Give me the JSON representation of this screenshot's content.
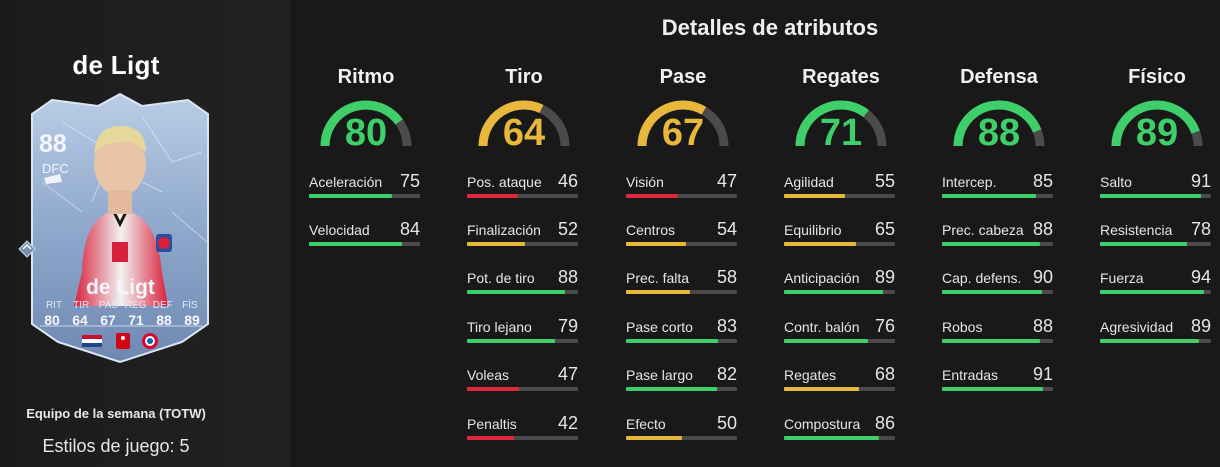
{
  "player": {
    "name": "de Ligt",
    "card_rating": "88",
    "card_position": "DFC",
    "card_name": "de Ligt",
    "card_stat_labels": [
      "RIT",
      "TIR",
      "PAS",
      "REG",
      "DEF",
      "FÍS"
    ],
    "card_stat_values": [
      "80",
      "64",
      "67",
      "71",
      "88",
      "89"
    ],
    "card_type": "Equipo de la semana (TOTW)",
    "playstyles": "Estilos de juego: 5"
  },
  "title": "Detalles de atributos",
  "colors": {
    "green": "#3ecf6a",
    "yellow": "#e8b83c",
    "red": "#e0283c",
    "track": "#4a4a4a",
    "gauge_track": "#4b4b4b"
  },
  "categories": [
    {
      "name": "Ritmo",
      "value": "80",
      "level": "green",
      "attrs": [
        {
          "label": "Aceleración",
          "value": "75"
        },
        {
          "label": "Velocidad",
          "value": "84"
        }
      ]
    },
    {
      "name": "Tiro",
      "value": "64",
      "level": "yellow",
      "attrs": [
        {
          "label": "Pos. ataque",
          "value": "46"
        },
        {
          "label": "Finalización",
          "value": "52"
        },
        {
          "label": "Pot. de tiro",
          "value": "88"
        },
        {
          "label": "Tiro lejano",
          "value": "79"
        },
        {
          "label": "Voleas",
          "value": "47"
        },
        {
          "label": "Penaltis",
          "value": "42"
        }
      ]
    },
    {
      "name": "Pase",
      "value": "67",
      "level": "yellow",
      "attrs": [
        {
          "label": "Visión",
          "value": "47"
        },
        {
          "label": "Centros",
          "value": "54"
        },
        {
          "label": "Prec. falta",
          "value": "58"
        },
        {
          "label": "Pase corto",
          "value": "83"
        },
        {
          "label": "Pase largo",
          "value": "82"
        },
        {
          "label": "Efecto",
          "value": "50"
        }
      ]
    },
    {
      "name": "Regates",
      "value": "71",
      "level": "green",
      "attrs": [
        {
          "label": "Agilidad",
          "value": "55"
        },
        {
          "label": "Equilibrio",
          "value": "65"
        },
        {
          "label": "Anticipación",
          "value": "89"
        },
        {
          "label": "Contr. balón",
          "value": "76"
        },
        {
          "label": "Regates",
          "value": "68"
        },
        {
          "label": "Compostura",
          "value": "86"
        }
      ]
    },
    {
      "name": "Defensa",
      "value": "88",
      "level": "green",
      "attrs": [
        {
          "label": "Intercep.",
          "value": "85"
        },
        {
          "label": "Prec. cabeza",
          "value": "88"
        },
        {
          "label": "Cap. defens.",
          "value": "90"
        },
        {
          "label": "Robos",
          "value": "88"
        },
        {
          "label": "Entradas",
          "value": "91"
        }
      ]
    },
    {
      "name": "Físico",
      "value": "89",
      "level": "green",
      "attrs": [
        {
          "label": "Salto",
          "value": "91"
        },
        {
          "label": "Resistencia",
          "value": "78"
        },
        {
          "label": "Fuerza",
          "value": "94"
        },
        {
          "label": "Agresividad",
          "value": "89"
        }
      ]
    }
  ]
}
